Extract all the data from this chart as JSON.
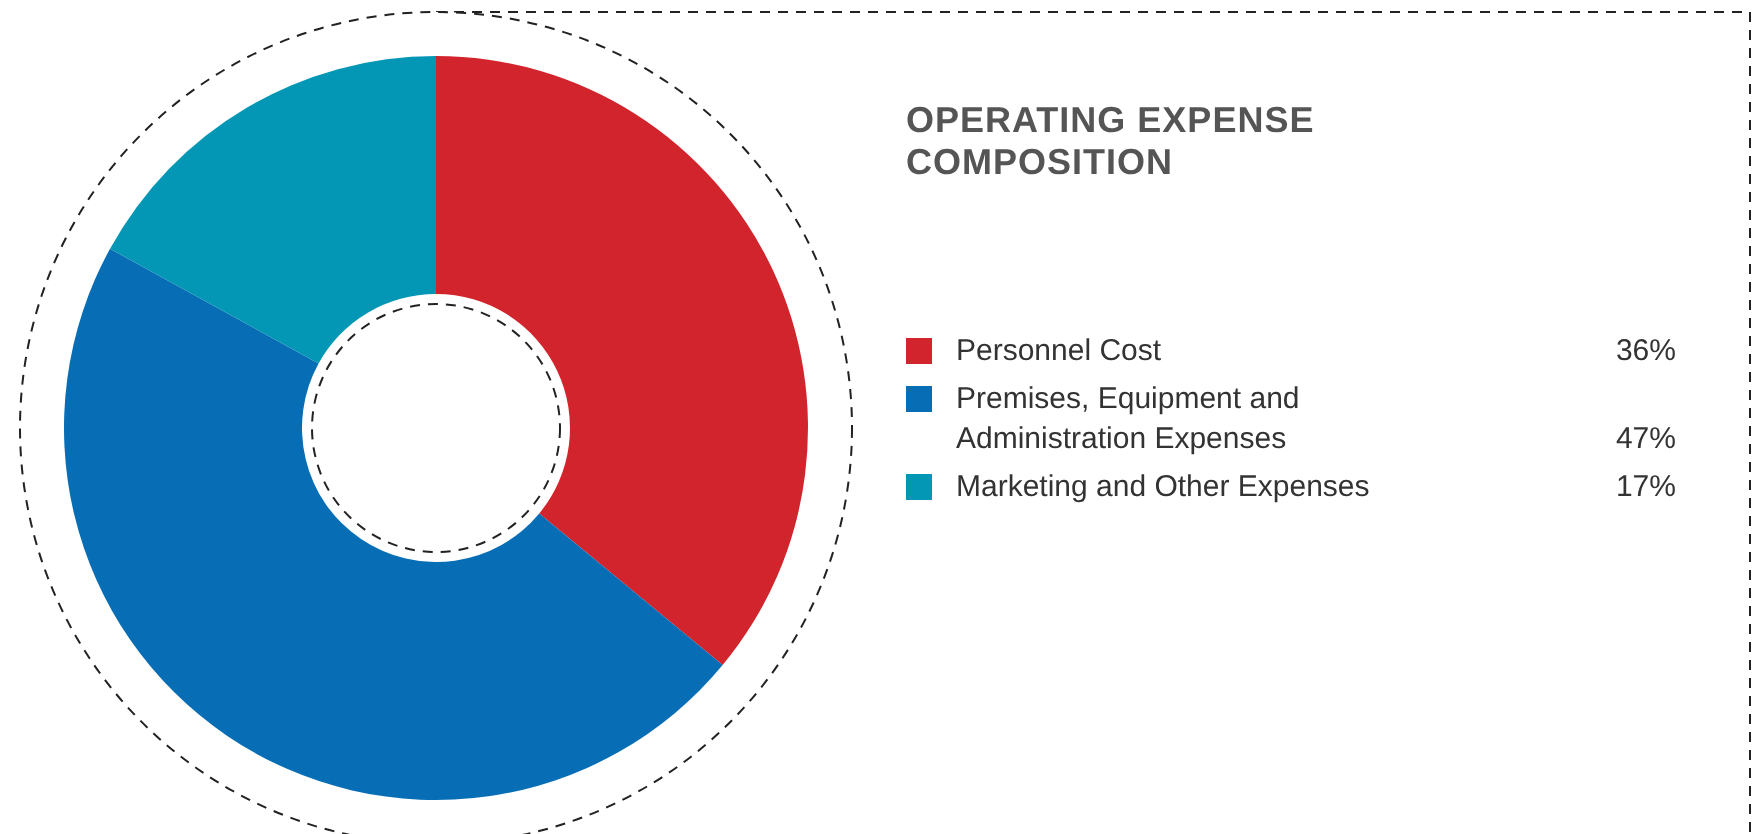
{
  "chart_data": {
    "type": "donut",
    "title": "OPERATING EXPENSE COMPOSITION",
    "categories": [
      "Personnel Cost",
      "Premises, Equipment and Administration Expenses",
      "Marketing and Other Expenses"
    ],
    "values": [
      36,
      47,
      17
    ],
    "colors": [
      "#d2242c",
      "#076eb6",
      "#0396b5"
    ],
    "value_labels": [
      "36%",
      "47%",
      "17%"
    ],
    "legend": "right"
  }
}
